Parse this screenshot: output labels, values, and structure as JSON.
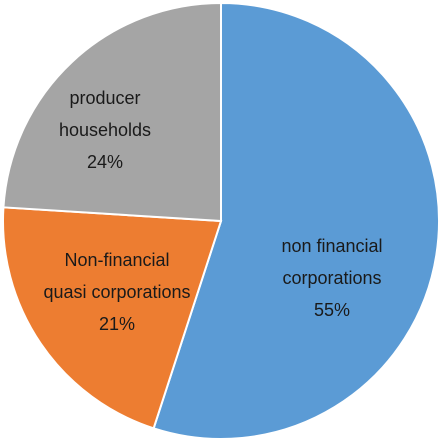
{
  "chart_data": {
    "type": "pie",
    "categories": [
      "non financial corporations",
      "Non-financial quasi corporations",
      "producer households"
    ],
    "values": [
      55,
      21,
      24
    ],
    "value_labels": [
      "55%",
      "21%",
      "24%"
    ],
    "colors": [
      "#5b9bd5",
      "#ed7d31",
      "#a5a5a5"
    ]
  }
}
